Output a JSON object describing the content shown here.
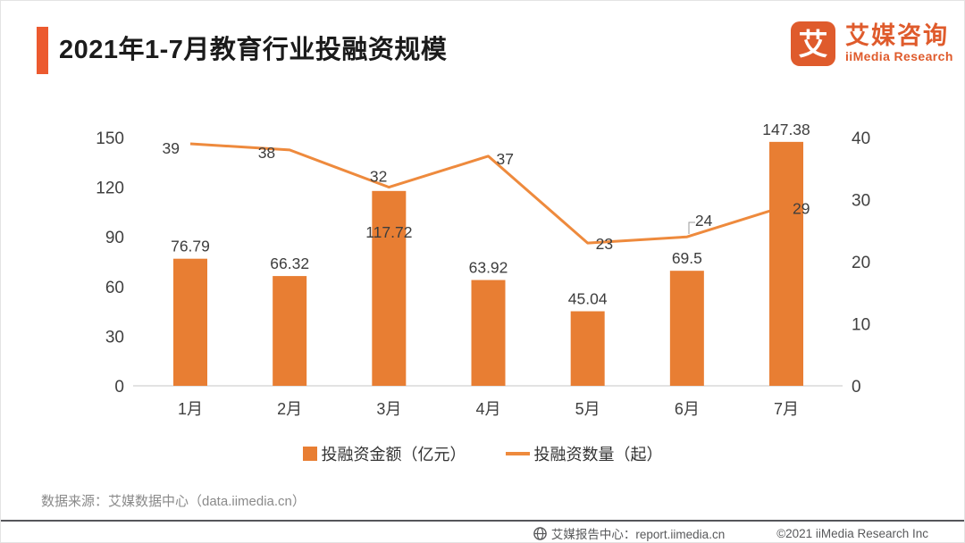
{
  "header": {
    "title": "2021年1-7月教育行业投融资规模"
  },
  "logo": {
    "icon_char": "艾",
    "name_cn": "艾媒咨询",
    "name_en": "iiMedia Research"
  },
  "chart_data": {
    "type": "combo",
    "categories": [
      "1月",
      "2月",
      "3月",
      "4月",
      "5月",
      "6月",
      "7月"
    ],
    "series": [
      {
        "name": "投融资金额（亿元）",
        "type": "bar",
        "axis": "left",
        "color": "#E87E33",
        "values": [
          76.79,
          66.32,
          117.72,
          63.92,
          45.04,
          69.5,
          147.38
        ]
      },
      {
        "name": "投融资数量（起）",
        "type": "line",
        "axis": "right",
        "color": "#EE8A3D",
        "values": [
          39,
          38,
          32,
          37,
          23,
          24,
          29
        ]
      }
    ],
    "left_axis": {
      "ticks": [
        0,
        30,
        60,
        90,
        120,
        150
      ],
      "max": 150
    },
    "right_axis": {
      "ticks": [
        0,
        10,
        20,
        30,
        40
      ],
      "max": 40
    },
    "grid": false,
    "legend_position": "bottom",
    "title": "2021年1-7月教育行业投融资规模"
  },
  "source": {
    "text": "数据来源：艾媒数据中心（data.iimedia.cn）"
  },
  "footer": {
    "report_center": "艾媒报告中心：report.iimedia.cn",
    "copyright": "©2021  iiMedia Research Inc"
  },
  "colors": {
    "accent": "#EC5A2F",
    "bar": "#E87E33",
    "line": "#EE8A3D",
    "logo": "#DF5B2C",
    "axis_text": "#404040",
    "data_label": "#3D3D3D"
  }
}
